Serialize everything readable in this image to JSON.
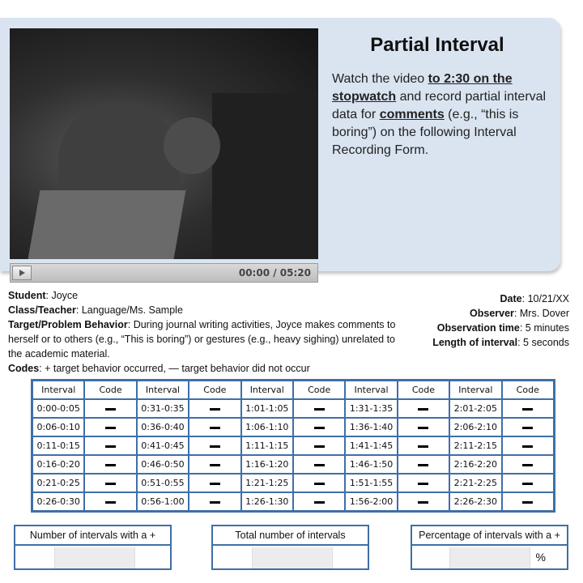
{
  "lesson": {
    "title": "Partial Interval",
    "instructions": {
      "part1": "Watch the video ",
      "emph1": "to 2:30 on the stopwatch",
      "part2": " and record partial interval data for ",
      "emph2": "comments",
      "part3": " (e.g., “this is boring”) on the following Interval Recording Form."
    }
  },
  "player": {
    "time": "00:00 / 05:20",
    "play_icon": "play-icon"
  },
  "form": {
    "student_label": "Student",
    "student": "Joyce",
    "class_label": "Class/Teacher",
    "class": "Language/Ms. Sample",
    "behavior_label": "Target/Problem Behavior",
    "behavior": "During journal writing activities, Joyce makes comments to herself or to others (e.g., “This is boring”) or gestures (e.g., heavy sighing) unrelated to the academic material.",
    "codes_label": "Codes",
    "codes": "+ target behavior occurred, — target behavior did not occur",
    "date_label": "Date",
    "date": "10/21/XX",
    "observer_label": "Observer",
    "observer": "Mrs. Dover",
    "obs_time_label": "Observation time",
    "obs_time": "5 minutes",
    "length_label": "Length of interval",
    "length": "5 seconds"
  },
  "table": {
    "headers": [
      "Interval",
      "Code",
      "Interval",
      "Code",
      "Interval",
      "Code",
      "Interval",
      "Code",
      "Interval",
      "Code"
    ],
    "rows": [
      [
        "0:00-0:05",
        "0:31-0:35",
        "1:01-1:05",
        "1:31-1:35",
        "2:01-2:05"
      ],
      [
        "0:06-0:10",
        "0:36-0:40",
        "1:06-1:10",
        "1:36-1:40",
        "2:06-2:10"
      ],
      [
        "0:11-0:15",
        "0:41-0:45",
        "1:11-1:15",
        "1:41-1:45",
        "2:11-2:15"
      ],
      [
        "0:16-0:20",
        "0:46-0:50",
        "1:16-1:20",
        "1:46-1:50",
        "2:16-2:20"
      ],
      [
        "0:21-0:25",
        "0:51-0:55",
        "1:21-1:25",
        "1:51-1:55",
        "2:21-2:25"
      ],
      [
        "0:26-0:30",
        "0:56-1:00",
        "1:26-1:30",
        "1:56-2:00",
        "2:26-2:30"
      ]
    ]
  },
  "summary": {
    "count_label": "Number of intervals with a +",
    "total_label": "Total number of intervals",
    "percent_label": "Percentage of intervals with a +",
    "percent_sign": "%"
  }
}
